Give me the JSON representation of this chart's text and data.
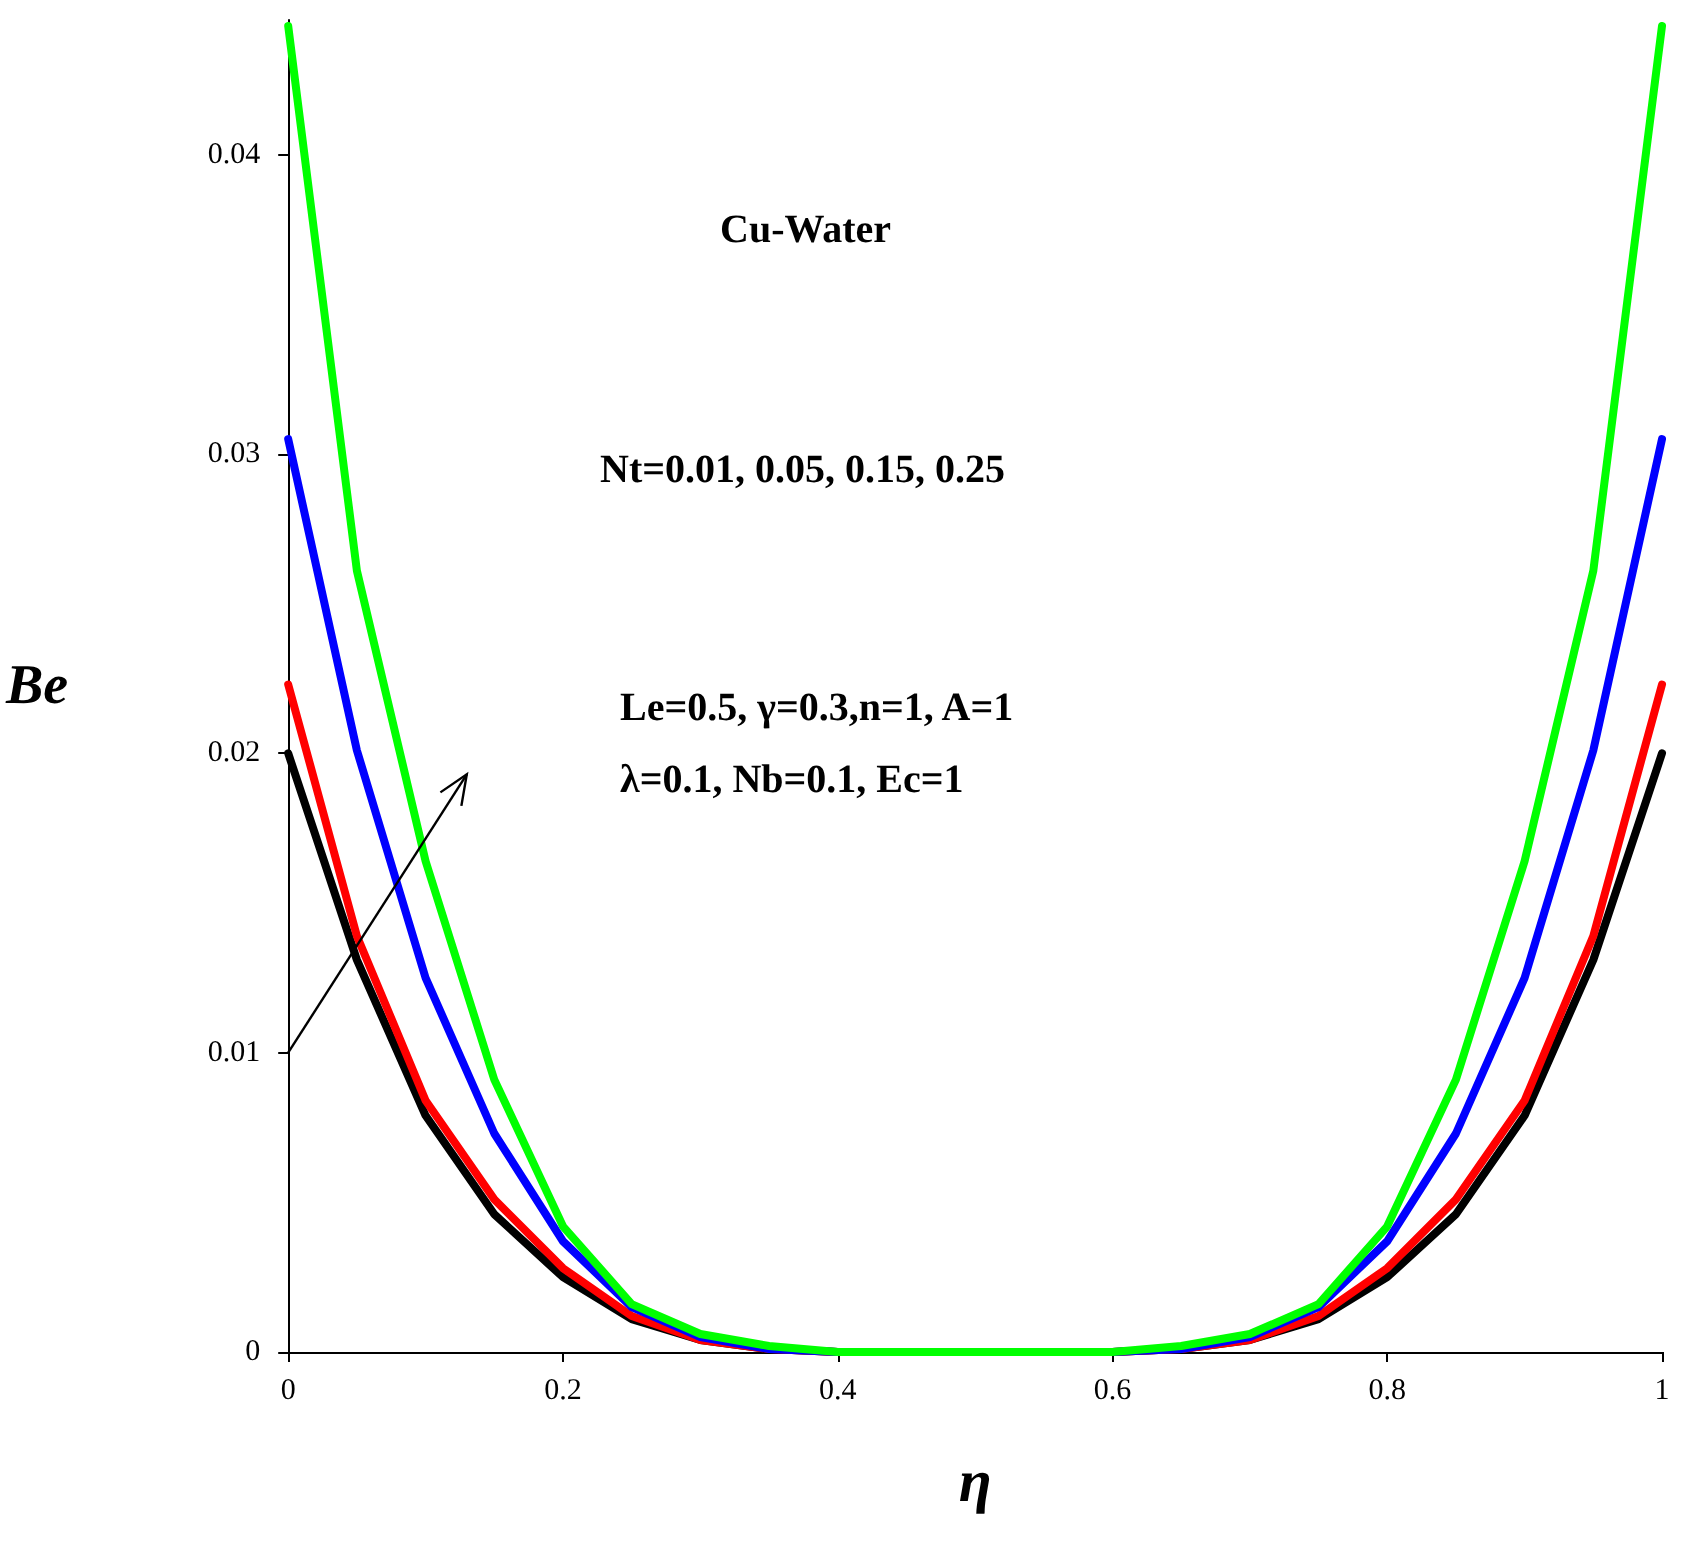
{
  "chart_data": {
    "type": "line",
    "xlabel": "η",
    "ylabel": "Be",
    "annotations": [
      "Cu-Water",
      "Nt=0.01, 0.05, 0.15, 0.25",
      "Le=0.5, γ=0.3,n=1, A=1",
      "λ=0.1, Nb=0.1, Ec=1"
    ],
    "x": [
      0,
      0.05,
      0.1,
      0.15,
      0.2,
      0.25,
      0.3,
      0.35,
      0.4,
      0.45,
      0.5,
      0.55,
      0.6,
      0.65,
      0.7,
      0.75,
      0.8,
      0.85,
      0.9,
      0.95,
      1
    ],
    "series": [
      {
        "color": "#000000",
        "values": [
          0.02,
          0.0131,
          0.0079,
          0.0046,
          0.0025,
          0.0011,
          0.0004,
          0.0001,
          0,
          0,
          0,
          0,
          0,
          0.0001,
          0.0004,
          0.0011,
          0.0025,
          0.0046,
          0.0079,
          0.0131,
          0.02
        ]
      },
      {
        "color": "#ff0000",
        "values": [
          0.0223,
          0.0139,
          0.0084,
          0.0051,
          0.0028,
          0.0012,
          0.0004,
          0.0001,
          0,
          0,
          0,
          0,
          0,
          0.0001,
          0.0004,
          0.0012,
          0.0028,
          0.0051,
          0.0084,
          0.0139,
          0.0223
        ]
      },
      {
        "color": "#0000ff",
        "values": [
          0.0305,
          0.0201,
          0.0125,
          0.0073,
          0.0037,
          0.0015,
          0.0005,
          0.0001,
          0,
          0,
          0,
          0,
          0,
          0.0001,
          0.0005,
          0.0015,
          0.0037,
          0.0073,
          0.0125,
          0.0201,
          0.0305
        ]
      },
      {
        "color": "#00ff00",
        "values": [
          0.0443,
          0.0261,
          0.0164,
          0.0091,
          0.0042,
          0.0016,
          0.0006,
          0.0002,
          0,
          0,
          0,
          0,
          0,
          0.0002,
          0.0006,
          0.0016,
          0.0042,
          0.0091,
          0.0164,
          0.0261,
          0.0443
        ]
      }
    ],
    "xlim": [
      0,
      1
    ],
    "xticks": [
      0,
      0.2,
      0.4,
      0.6,
      0.8,
      1
    ],
    "ylim": [
      0,
      0.0445
    ],
    "yticks": [
      0,
      0.01,
      0.02,
      0.03,
      0.04
    ],
    "grid": false,
    "marker": "none",
    "line_style": "solid"
  }
}
